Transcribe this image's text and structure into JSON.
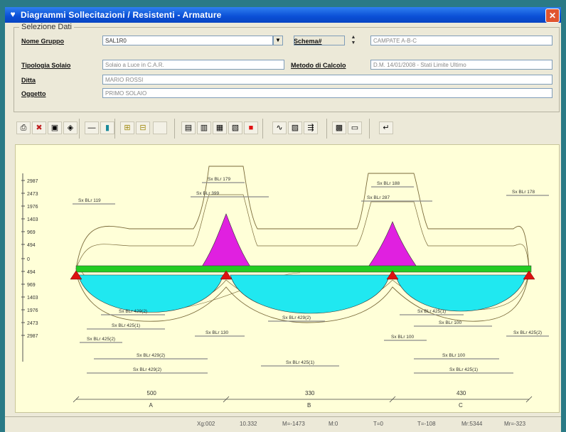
{
  "window": {
    "title": "Diagrammi Sollecitazioni / Resistenti - Armature",
    "close": "✕"
  },
  "form": {
    "group_title": "Selezione Dati",
    "nome_gruppo_label": "Nome Gruppo",
    "nome_gruppo_value": "SAL1R0",
    "schema_label": "Schema#",
    "schema_value": "CAMPATE A-B-C",
    "tipologia_label": "Tipologia Solaio",
    "tipologia_value": "Solaio a Luce in C.A.R.",
    "metodo_label": "Metodo di Calcolo",
    "metodo_value": "D.M. 14/01/2008 - Stati Limite Ultimo",
    "ditta_label": "Ditta",
    "ditta_value": "MARIO ROSSI",
    "oggetto_label": "Oggetto",
    "oggetto_value": "PRIMO SOLAIO"
  },
  "toolbar": {
    "buttons": [
      {
        "name": "print-icon",
        "glyph": "⎙"
      },
      {
        "name": "excel-icon",
        "glyph": "✖"
      },
      {
        "name": "save-icon",
        "glyph": "▣"
      },
      {
        "name": "preview-icon",
        "glyph": "◈"
      },
      {
        "name": "line-icon",
        "glyph": "—"
      },
      {
        "name": "fill-icon",
        "glyph": "▮"
      },
      {
        "name": "grid-icon",
        "glyph": "⊞"
      },
      {
        "name": "grid-alt-icon",
        "glyph": "⊟"
      },
      {
        "name": "blank-icon",
        "glyph": ""
      },
      {
        "name": "chart-m-icon",
        "glyph": "▤"
      },
      {
        "name": "chart-t-icon",
        "glyph": "▥"
      },
      {
        "name": "chart-n-icon",
        "glyph": "▦"
      },
      {
        "name": "chart-a-icon",
        "glyph": "▧"
      },
      {
        "name": "stop-icon",
        "glyph": "■"
      },
      {
        "name": "diagram-icon",
        "glyph": "∿"
      },
      {
        "name": "report-icon",
        "glyph": "▨"
      },
      {
        "name": "export-icon",
        "glyph": "⇶"
      },
      {
        "name": "bars-icon",
        "glyph": "▩"
      },
      {
        "name": "bars-alt-icon",
        "glyph": "▭"
      },
      {
        "name": "back-icon",
        "glyph": "↵"
      }
    ]
  },
  "diagram": {
    "y_ticks": [
      "2987",
      "2473",
      "1976",
      "1403",
      "969",
      "494",
      "0",
      "494",
      "969",
      "1403",
      "1976",
      "2473",
      "2987"
    ],
    "span_lengths": [
      "500",
      "330",
      "430"
    ],
    "span_names": [
      "A",
      "B",
      "C"
    ],
    "top_labels": [
      "Sx BLr 119",
      "Sx BLr 179",
      "Sx BLr 399",
      "Sx BLr 188",
      "Sx BLr 287",
      "Sx BLr 178"
    ],
    "bottom_labels": [
      "Sx BLr 429(2)",
      "Sx BLr 425(1)",
      "Sx BLr 130",
      "Sx BLr 429(2)",
      "Sx BLr 425(1)",
      "Sx BLr 100",
      "Sx BLr 100",
      "Sx BLr 425(2)",
      "Sx BLr 425(2)",
      "Sx BLr 429(2)",
      "Sx BLr 425(1)",
      "Sx BLr 100",
      "Sx BLr 429(2)",
      "Sx BLr 425(1)"
    ],
    "colors": {
      "moment_neg": "#e020e0",
      "moment_pos": "#20e8f0",
      "beam": "#22cc22",
      "support": "#dd1111",
      "line": "#7a6a3a"
    }
  },
  "status": {
    "items": [
      "Xg:002",
      "10.332",
      "M=-1473",
      "M:0",
      "T=0",
      "T=-108",
      "Mr:5344",
      "Mr=-323"
    ]
  }
}
